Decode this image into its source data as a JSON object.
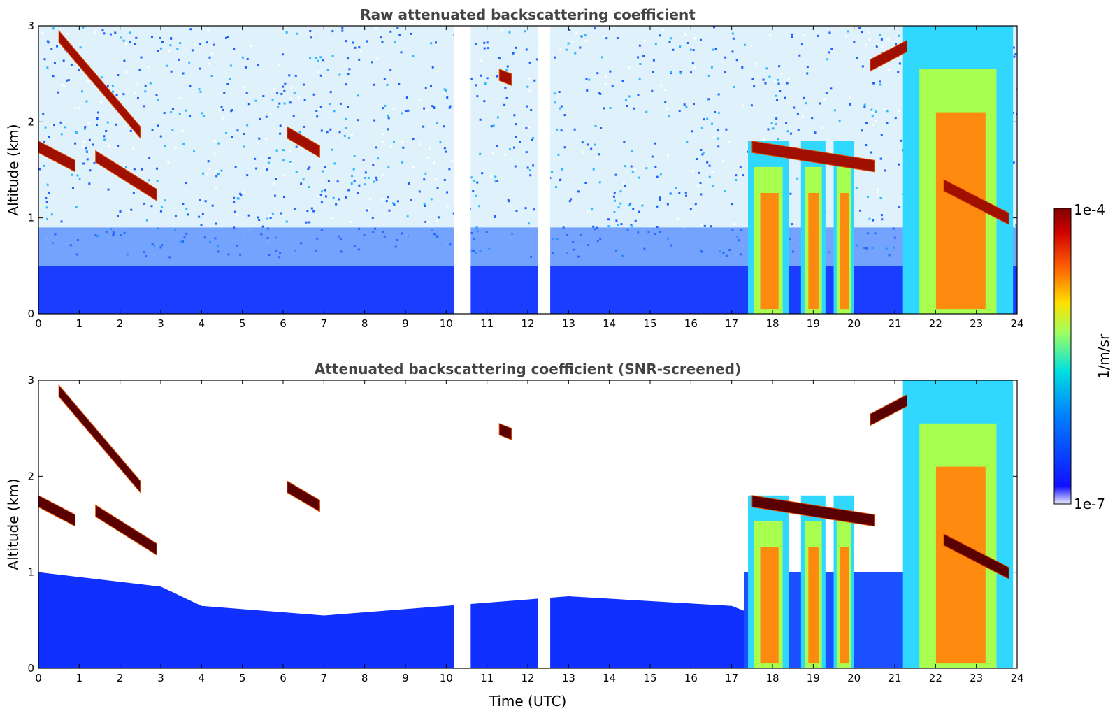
{
  "chart_data": [
    {
      "type": "heatmap",
      "title": "Raw attenuated backscattering coefficient",
      "xlabel": "",
      "ylabel": "Altitude (km)",
      "xlim": [
        0,
        24
      ],
      "ylim": [
        0,
        3
      ],
      "x_ticks": [
        "0",
        "1",
        "2",
        "3",
        "4",
        "5",
        "6",
        "7",
        "8",
        "9",
        "10",
        "11",
        "12",
        "13",
        "14",
        "15",
        "16",
        "17",
        "18",
        "19",
        "20",
        "21",
        "22",
        "23",
        "24"
      ],
      "y_ticks": [
        "0",
        "1",
        "2",
        "3"
      ],
      "data_gaps_utc": [
        [
          10.2,
          10.6
        ],
        [
          12.25,
          12.55
        ]
      ],
      "cloud_layers": [
        {
          "start": 0.5,
          "end": 2.5,
          "alt_start": 2.95,
          "alt_end": 1.95
        },
        {
          "start": 0.0,
          "end": 0.9,
          "alt_start": 1.8,
          "alt_end": 1.6
        },
        {
          "start": 1.4,
          "end": 2.9,
          "alt_start": 1.7,
          "alt_end": 1.3
        },
        {
          "start": 6.1,
          "end": 6.9,
          "alt_start": 1.95,
          "alt_end": 1.75
        },
        {
          "start": 11.3,
          "end": 11.6,
          "alt_start": 2.55,
          "alt_end": 2.5
        },
        {
          "start": 17.5,
          "end": 20.5,
          "alt_start": 1.8,
          "alt_end": 1.6
        },
        {
          "start": 20.4,
          "end": 21.3,
          "alt_start": 2.65,
          "alt_end": 2.85
        },
        {
          "start": 22.2,
          "end": 23.8,
          "alt_start": 1.4,
          "alt_end": 1.05
        }
      ],
      "boundary_layer_top_km": [
        [
          0,
          0.5
        ],
        [
          10,
          0.5
        ],
        [
          17.3,
          0.5
        ]
      ],
      "deep_plumes": [
        {
          "start": 17.4,
          "end": 18.4
        },
        {
          "start": 18.7,
          "end": 19.3
        },
        {
          "start": 19.5,
          "end": 20.0
        },
        {
          "start": 21.2,
          "end": 23.9
        }
      ]
    },
    {
      "type": "heatmap",
      "title": "Attenuated backscattering coefficient (SNR-screened)",
      "xlabel": "Time (UTC)",
      "ylabel": "Altitude (km)",
      "xlim": [
        0,
        24
      ],
      "ylim": [
        0,
        3
      ],
      "x_ticks": [
        "0",
        "1",
        "2",
        "3",
        "4",
        "5",
        "6",
        "7",
        "8",
        "9",
        "10",
        "11",
        "12",
        "13",
        "14",
        "15",
        "16",
        "17",
        "18",
        "19",
        "20",
        "21",
        "22",
        "23",
        "24"
      ],
      "y_ticks": [
        "0",
        "1",
        "2",
        "3"
      ],
      "screened_boundary_layer_top_km": [
        [
          0,
          1.0
        ],
        [
          3,
          0.85
        ],
        [
          4,
          0.65
        ],
        [
          7,
          0.55
        ],
        [
          10,
          0.65
        ],
        [
          13,
          0.75
        ],
        [
          17,
          0.65
        ]
      ]
    }
  ],
  "colorbar": {
    "min_label": "1e-7",
    "max_label": "1e-4",
    "unit": "1/m/sr",
    "colormap": "jet",
    "colors": [
      "#e8e8ff",
      "#0000ff",
      "#00a0ff",
      "#00e0c0",
      "#c0ff40",
      "#ffd000",
      "#ff6000",
      "#d00000",
      "#800000"
    ]
  }
}
